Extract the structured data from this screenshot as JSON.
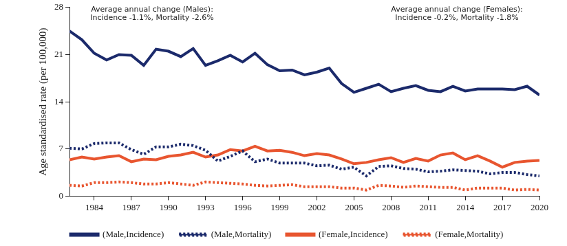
{
  "chart_data": {
    "type": "line",
    "y_label": "Age standardised rate (per 100,000)",
    "annotations": [
      "Average annual change (Males):\nIncidence -1.1%, Mortality -2.6%",
      "Average annual change (Females):\nIncidence -0.2%, Mortality -1.8%"
    ],
    "x": [
      1982,
      1983,
      1984,
      1985,
      1986,
      1987,
      1988,
      1989,
      1990,
      1991,
      1992,
      1993,
      1994,
      1995,
      1996,
      1997,
      1998,
      1999,
      2000,
      2001,
      2002,
      2003,
      2004,
      2005,
      2006,
      2007,
      2008,
      2009,
      2010,
      2011,
      2012,
      2013,
      2014,
      2015,
      2016,
      2017,
      2018,
      2019,
      2020
    ],
    "xlim": [
      1982,
      2020
    ],
    "xticks": [
      1984,
      1987,
      1990,
      1993,
      1996,
      1999,
      2002,
      2005,
      2008,
      2011,
      2014,
      2017,
      2020
    ],
    "ylim": [
      0,
      28
    ],
    "yticks": [
      0,
      7,
      14,
      21,
      28
    ],
    "grid": false,
    "legend": "bottom",
    "series": [
      {
        "name": "(Male,Incidence)",
        "color": "#1b2a6b",
        "line_style": "solid",
        "values": [
          24.5,
          23.2,
          21.2,
          20.2,
          21.0,
          20.9,
          19.4,
          21.8,
          21.5,
          20.7,
          21.9,
          19.4,
          20.1,
          20.9,
          19.9,
          21.2,
          19.5,
          18.6,
          18.7,
          18.0,
          18.4,
          19.0,
          16.7,
          15.4,
          16.0,
          16.6,
          15.5,
          16.0,
          16.4,
          15.7,
          15.5,
          16.3,
          15.6,
          15.9,
          15.9,
          15.9,
          15.8,
          16.3,
          15.0
        ]
      },
      {
        "name": "(Male,Mortality)",
        "color": "#1b2a6b",
        "line_style": "dotted",
        "values": [
          7.1,
          7.0,
          7.8,
          7.9,
          7.9,
          6.9,
          6.2,
          7.3,
          7.3,
          7.7,
          7.5,
          6.8,
          5.2,
          5.9,
          6.7,
          5.1,
          5.5,
          4.9,
          4.9,
          4.9,
          4.5,
          4.6,
          4.0,
          4.3,
          3.0,
          4.4,
          4.5,
          4.1,
          4.0,
          3.6,
          3.7,
          3.9,
          3.8,
          3.7,
          3.3,
          3.5,
          3.5,
          3.2,
          3.0
        ]
      },
      {
        "name": "(Female,Incidence)",
        "color": "#e8552f",
        "line_style": "solid",
        "values": [
          5.4,
          5.8,
          5.5,
          5.8,
          6.0,
          5.1,
          5.5,
          5.4,
          5.9,
          6.1,
          6.5,
          5.8,
          6.1,
          6.9,
          6.7,
          7.4,
          6.7,
          6.8,
          6.5,
          6.0,
          6.3,
          6.1,
          5.5,
          4.8,
          5.0,
          5.4,
          5.7,
          5.0,
          5.6,
          5.2,
          6.1,
          6.4,
          5.4,
          6.0,
          5.2,
          4.3,
          5.0,
          5.2,
          5.3
        ]
      },
      {
        "name": "(Female,Mortality)",
        "color": "#e8552f",
        "line_style": "dotted",
        "values": [
          1.6,
          1.5,
          2.0,
          2.0,
          2.1,
          2.0,
          1.8,
          1.8,
          2.0,
          1.8,
          1.6,
          2.1,
          2.0,
          1.9,
          1.8,
          1.6,
          1.5,
          1.6,
          1.7,
          1.4,
          1.4,
          1.4,
          1.2,
          1.2,
          0.9,
          1.6,
          1.5,
          1.3,
          1.5,
          1.4,
          1.3,
          1.3,
          0.9,
          1.2,
          1.2,
          1.2,
          0.9,
          1.0,
          0.9
        ]
      }
    ]
  }
}
